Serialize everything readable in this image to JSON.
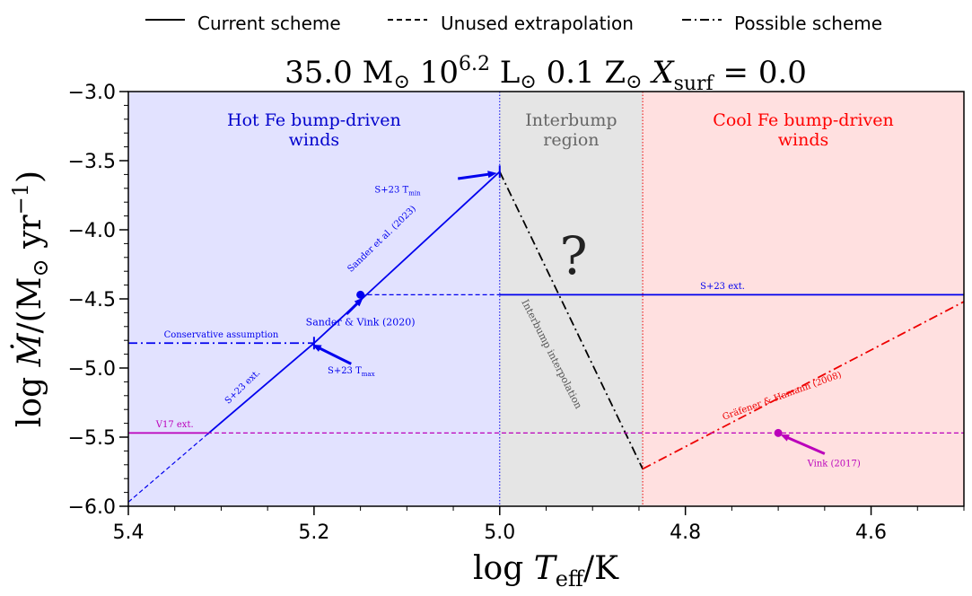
{
  "chart_data": {
    "type": "line",
    "title": "35.0 M⊙  10^6.2 L⊙  0.1 Z⊙  X_surf = 0.0",
    "title_parts": {
      "mass": "35.0",
      "lum_exp": "6.2",
      "z": "0.1",
      "xsurf": "0.0"
    },
    "xlabel": "log T_eff/K",
    "ylabel": "log Ṁ/(M⊙ yr⁻¹)",
    "xlim": [
      5.4,
      4.5
    ],
    "ylim": [
      -6.0,
      -3.0
    ],
    "x_ticks": [
      "5.4",
      "5.2",
      "5.0",
      "4.8",
      "4.6"
    ],
    "y_ticks": [
      "−3.0",
      "−3.5",
      "−4.0",
      "−4.5",
      "−5.0",
      "−5.5",
      "−6.0"
    ],
    "legend": {
      "position": "top",
      "entries": [
        {
          "label": "Current scheme",
          "style": "solid"
        },
        {
          "label": "Unused extrapolation",
          "style": "dashed"
        },
        {
          "label": "Possible scheme",
          "style": "dashdot"
        }
      ]
    },
    "regions": [
      {
        "name": "Hot Fe bump-driven",
        "name2": "winds",
        "x": [
          5.4,
          5.0
        ],
        "fill": "#e2e2ff",
        "text_color": "#0000cc"
      },
      {
        "name": "Interbump",
        "name2": "region",
        "x": [
          5.0,
          4.846
        ],
        "fill": "#e5e5e5",
        "text_color": "#666666"
      },
      {
        "name": "Cool Fe bump-driven",
        "name2": "winds",
        "x": [
          4.846,
          4.5
        ],
        "fill": "#ffe0e0",
        "text_color": "#ff0000"
      }
    ],
    "question_mark": "?",
    "series": [
      {
        "name": "Sander et al. (2023)",
        "color": "#0000ee",
        "style": "solid",
        "x": [
          5.2,
          5.0
        ],
        "y": [
          -4.82,
          -3.58
        ]
      },
      {
        "name": "S+23 ext.",
        "color": "#0000ee",
        "style": "solid",
        "x": [
          5.315,
          5.2
        ],
        "y": [
          -5.48,
          -4.82
        ]
      },
      {
        "name": "S+23 ext. low",
        "color": "#0000ee",
        "style": "dashed",
        "x": [
          5.4,
          5.315
        ],
        "y": [
          -5.97,
          -5.48
        ]
      },
      {
        "name": "Conservative assumption",
        "color": "#0000ee",
        "style": "dashdot",
        "x": [
          5.4,
          5.2
        ],
        "y": [
          -4.82,
          -4.82
        ]
      },
      {
        "name": "S+23 ext. flat (unused)",
        "color": "#0000ee",
        "style": "dashed",
        "x": [
          5.15,
          5.0
        ],
        "y": [
          -4.47,
          -4.47
        ]
      },
      {
        "name": "S+23 ext. cool",
        "color": "#0000ee",
        "style": "solid",
        "x": [
          5.0,
          4.5
        ],
        "y": [
          -4.47,
          -4.47
        ]
      },
      {
        "name": "Interbump interpolation",
        "color": "#000000",
        "style": "dashdot",
        "x": [
          5.0,
          4.846
        ],
        "y": [
          -3.58,
          -5.73
        ]
      },
      {
        "name": "Gräfener & Hamann (2008)",
        "color": "#ee0000",
        "style": "dashdot",
        "x": [
          4.846,
          4.5
        ],
        "y": [
          -5.73,
          -4.52
        ]
      },
      {
        "name": "V17 ext.",
        "color": "#bb00bb",
        "style": "solid",
        "x": [
          5.4,
          5.315
        ],
        "y": [
          -5.47,
          -5.47
        ]
      },
      {
        "name": "Vink (2017) ext.",
        "color": "#bb00bb",
        "style": "dashed",
        "x": [
          5.315,
          4.5
        ],
        "y": [
          -5.47,
          -5.47
        ]
      }
    ],
    "points": [
      {
        "name": "Sander & Vink (2020)",
        "x": 5.15,
        "y": -4.47,
        "color": "#0000ee"
      },
      {
        "name": "Vink (2017)",
        "x": 4.7,
        "y": -5.47,
        "color": "#bb00bb"
      }
    ],
    "tick_marks": [
      {
        "name": "S+23 T_min",
        "x": 5.0,
        "y": -3.58
      },
      {
        "name": "S+23 T_max",
        "x": 5.2,
        "y": -4.82
      }
    ],
    "annotations": [
      {
        "text": "Sander et al. (2023)",
        "x": 5.125,
        "y": -4.08,
        "color": "#0000ee",
        "size": 10,
        "angle": -44
      },
      {
        "text": "S+23 T",
        "sub": "min",
        "x": 5.11,
        "y": -3.73,
        "color": "#0000ee",
        "size": 10,
        "angle": 0
      },
      {
        "text": "S+23 T",
        "sub": "max",
        "x": 5.16,
        "y": -5.04,
        "color": "#0000ee",
        "size": 10,
        "angle": 0
      },
      {
        "text": "Sander & Vink (2020)",
        "x": 5.15,
        "y": -4.69,
        "color": "#0000ee",
        "size": 11,
        "angle": 0
      },
      {
        "text": "S+23 ext.",
        "x": 5.275,
        "y": -5.15,
        "color": "#0000ee",
        "size": 10,
        "angle": -44
      },
      {
        "text": "S+23 ext.",
        "x": 4.76,
        "y": -4.43,
        "color": "#0000ee",
        "size": 10,
        "angle": 0
      },
      {
        "text": "Conservative assumption",
        "x": 5.3,
        "y": -4.78,
        "color": "#0000ee",
        "size": 10,
        "angle": 0
      },
      {
        "text": "V17 ext.",
        "x": 5.35,
        "y": -5.43,
        "color": "#bb00bb",
        "size": 10,
        "angle": 0
      },
      {
        "text": "Interbump interpolation",
        "x": 4.947,
        "y": -4.91,
        "color": "#555555",
        "size": 11,
        "angle": 63
      },
      {
        "text": "Gräfener & Hamann (2008)",
        "x": 4.695,
        "y": -5.22,
        "color": "#ee0000",
        "size": 10,
        "angle": -20
      },
      {
        "text": "Vink (2017)",
        "x": 4.64,
        "y": -5.71,
        "color": "#bb00bb",
        "size": 10,
        "angle": 0
      }
    ],
    "arrows": [
      {
        "from": [
          5.045,
          -3.63
        ],
        "to": [
          5.003,
          -3.59
        ],
        "color": "#0000ee"
      },
      {
        "from": [
          5.165,
          -4.61
        ],
        "to": [
          5.147,
          -4.49
        ],
        "color": "#0000ee"
      },
      {
        "from": [
          5.16,
          -4.97
        ],
        "to": [
          5.202,
          -4.83
        ],
        "color": "#0000ee"
      },
      {
        "from": [
          4.65,
          -5.62
        ],
        "to": [
          4.698,
          -5.48
        ],
        "color": "#bb00bb"
      }
    ]
  }
}
